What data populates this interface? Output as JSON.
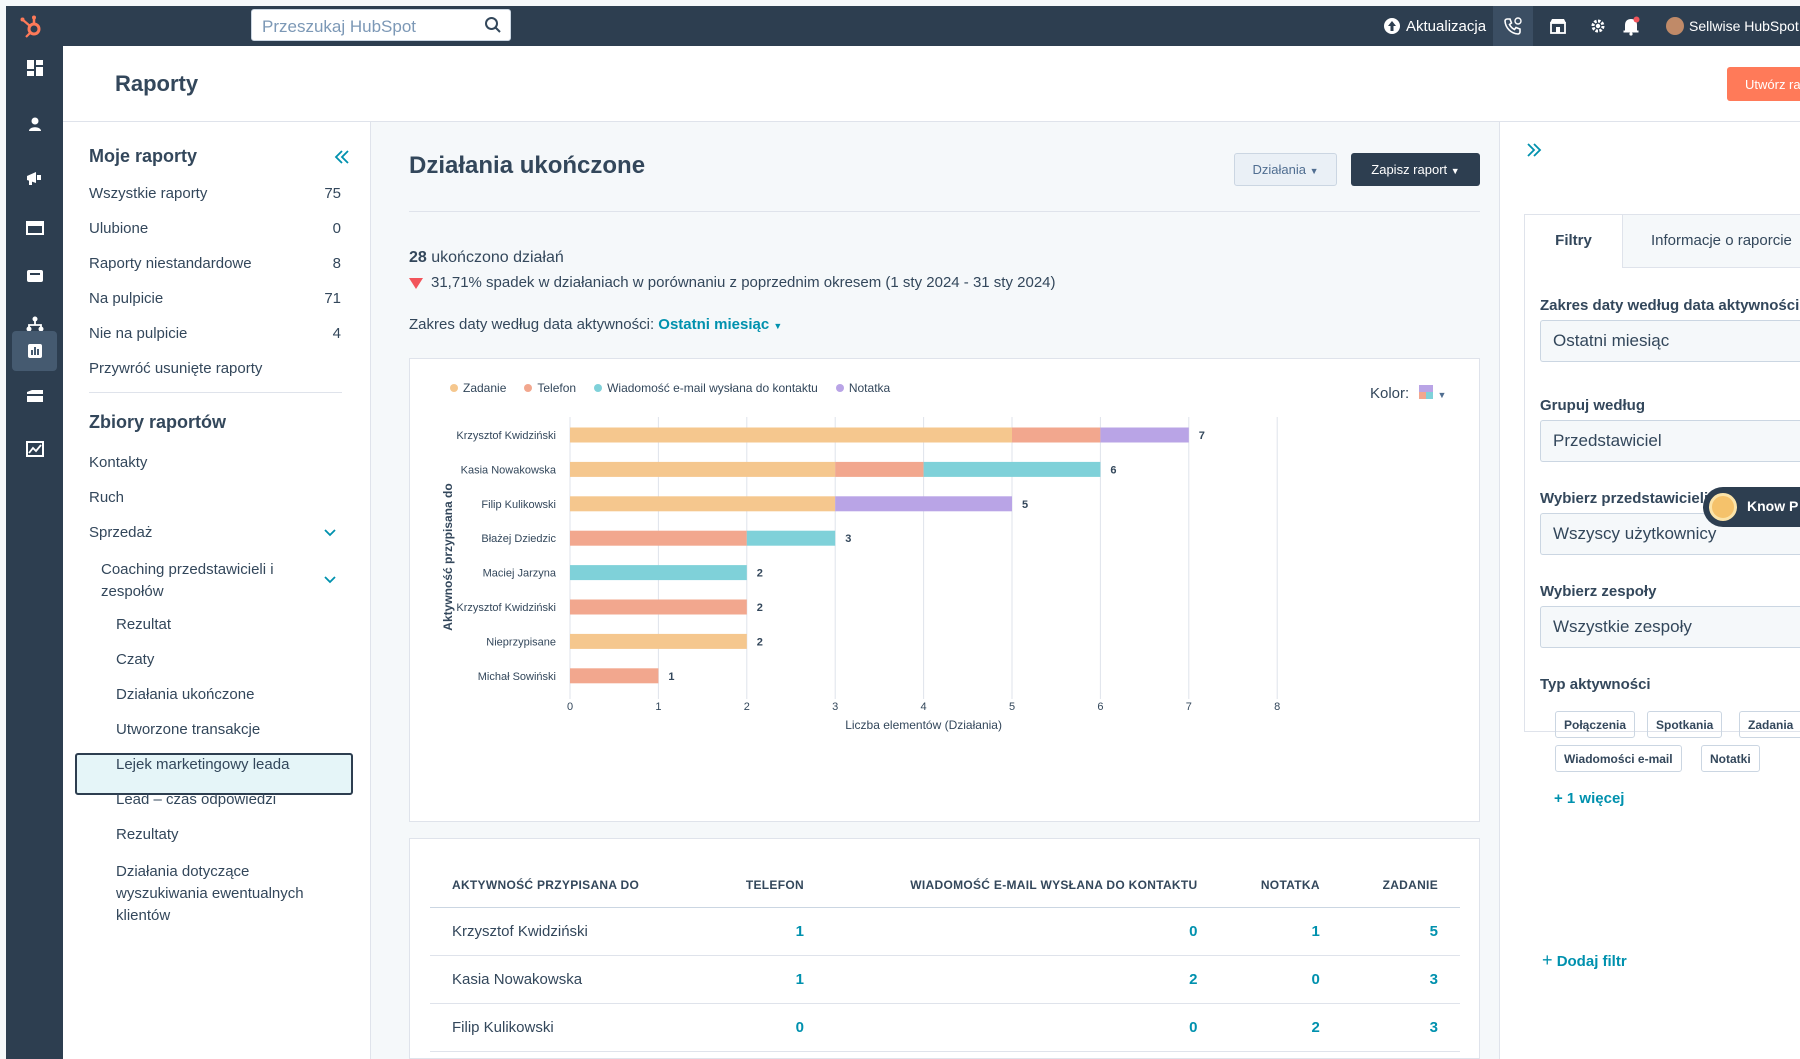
{
  "topnav": {
    "search_placeholder": "Przeszukaj HubSpot",
    "upgrade_label": "Aktualizacja",
    "account_label": "Sellwise HubSpot"
  },
  "page": {
    "title": "Raporty",
    "create_label": "Utwórz raport"
  },
  "left": {
    "my_reports_title": "Moje raporty",
    "items": [
      {
        "label": "Wszystkie raporty",
        "count": "75"
      },
      {
        "label": "Ulubione",
        "count": "0"
      },
      {
        "label": "Raporty niestandardowe",
        "count": "8"
      },
      {
        "label": "Na pulpicie",
        "count": "71"
      },
      {
        "label": "Nie na pulpicie",
        "count": "4"
      },
      {
        "label": "Przywróć usunięte raporty",
        "count": ""
      }
    ],
    "collections_title": "Zbiory raportów",
    "collections": [
      "Kontakty",
      "Ruch",
      "Sprzedaż"
    ],
    "coaching_line1": "Coaching przedstawicieli i",
    "coaching_line2": "zespołów",
    "subitems": [
      "Rezultat",
      "Czaty",
      "Działania ukończone",
      "Utworzone transakcje",
      "Lejek marketingowy leada",
      "Lead – czas odpowiedzi",
      "Rezultaty"
    ],
    "last_item_lines": [
      "Działania dotyczące",
      "wyszukiwania ewentualnych",
      "klientów"
    ]
  },
  "main": {
    "title": "Działania ukończone",
    "actions_btn": "Działania",
    "save_btn": "Zapisz raport",
    "summary_count": "28",
    "summary_text": " ukończono działań",
    "decline_text": "31,71% spadek w działaniach w porównaniu z poprzednim okresem (1 sty 2024 - 31 sty 2024)",
    "date_label": "Zakres daty według data aktywności: ",
    "date_value": "Ostatni miesiąc",
    "color_label": "Kolor:"
  },
  "chart_data": {
    "type": "bar",
    "orientation": "horizontal",
    "stacked": true,
    "categories": [
      "Krzysztof Kwidziński",
      "Kasia Nowakowska",
      "Filip Kulikowski",
      "Błażej Dziedzic",
      "Maciej Jarzyna",
      "Krzysztof Kwidziński",
      "Nieprzypisane",
      "Michał Sowiński"
    ],
    "series": [
      {
        "name": "Zadanie",
        "color": "#f5c78e",
        "values": [
          5,
          3,
          3,
          0,
          0,
          0,
          2,
          0
        ]
      },
      {
        "name": "Telefon",
        "color": "#f2a78e",
        "values": [
          1,
          1,
          0,
          2,
          0,
          2,
          0,
          1
        ]
      },
      {
        "name": "Wiadomość e-mail wysłana do kontaktu",
        "color": "#7fd1d9",
        "values": [
          0,
          2,
          0,
          1,
          2,
          0,
          0,
          0
        ]
      },
      {
        "name": "Notatka",
        "color": "#b9a4e6",
        "values": [
          1,
          0,
          2,
          0,
          0,
          0,
          0,
          0
        ]
      }
    ],
    "totals": [
      "7",
      "6",
      "5",
      "3",
      "2",
      "2",
      "2",
      "1"
    ],
    "xlabel": "Liczba elementów (Działania)",
    "ylabel": "Aktywność przypisana do",
    "xlim": [
      0,
      8
    ],
    "xticks": [
      "0",
      "1",
      "2",
      "3",
      "4",
      "5",
      "6",
      "7",
      "8"
    ],
    "grid": true,
    "legend_position": "top-left"
  },
  "table": {
    "headers": [
      "AKTYWNOŚĆ PRZYPISANA DO",
      "TELEFON",
      "WIADOMOŚĆ E-MAIL WYSŁANA DO KONTAKTU",
      "NOTATKA",
      "ZADANIE"
    ],
    "rows": [
      [
        "Krzysztof Kwidziński",
        "1",
        "0",
        "1",
        "5"
      ],
      [
        "Kasia Nowakowska",
        "1",
        "2",
        "0",
        "3"
      ],
      [
        "Filip Kulikowski",
        "0",
        "0",
        "2",
        "3"
      ]
    ]
  },
  "right": {
    "tab_filters": "Filtry",
    "tab_info": "Informacje o raporcie",
    "date_label": "Zakres daty według data aktywności",
    "date_value": "Ostatni miesiąc",
    "group_label": "Grupuj według",
    "group_value": "Przedstawiciel",
    "reps_label": "Wybierz przedstawicieli",
    "reps_value": "Wszyscy użytkownicy",
    "teams_label": "Wybierz zespoły",
    "teams_value": "Wszystkie zespoły",
    "type_label": "Typ aktywności",
    "chips": [
      "Połączenia",
      "Spotkania",
      "Zadania",
      "Wiadomości e-mail",
      "Notatki"
    ],
    "more_label": "+ 1 więcej",
    "add_filter": "Dodaj filtr",
    "know_badge": "Know P"
  }
}
